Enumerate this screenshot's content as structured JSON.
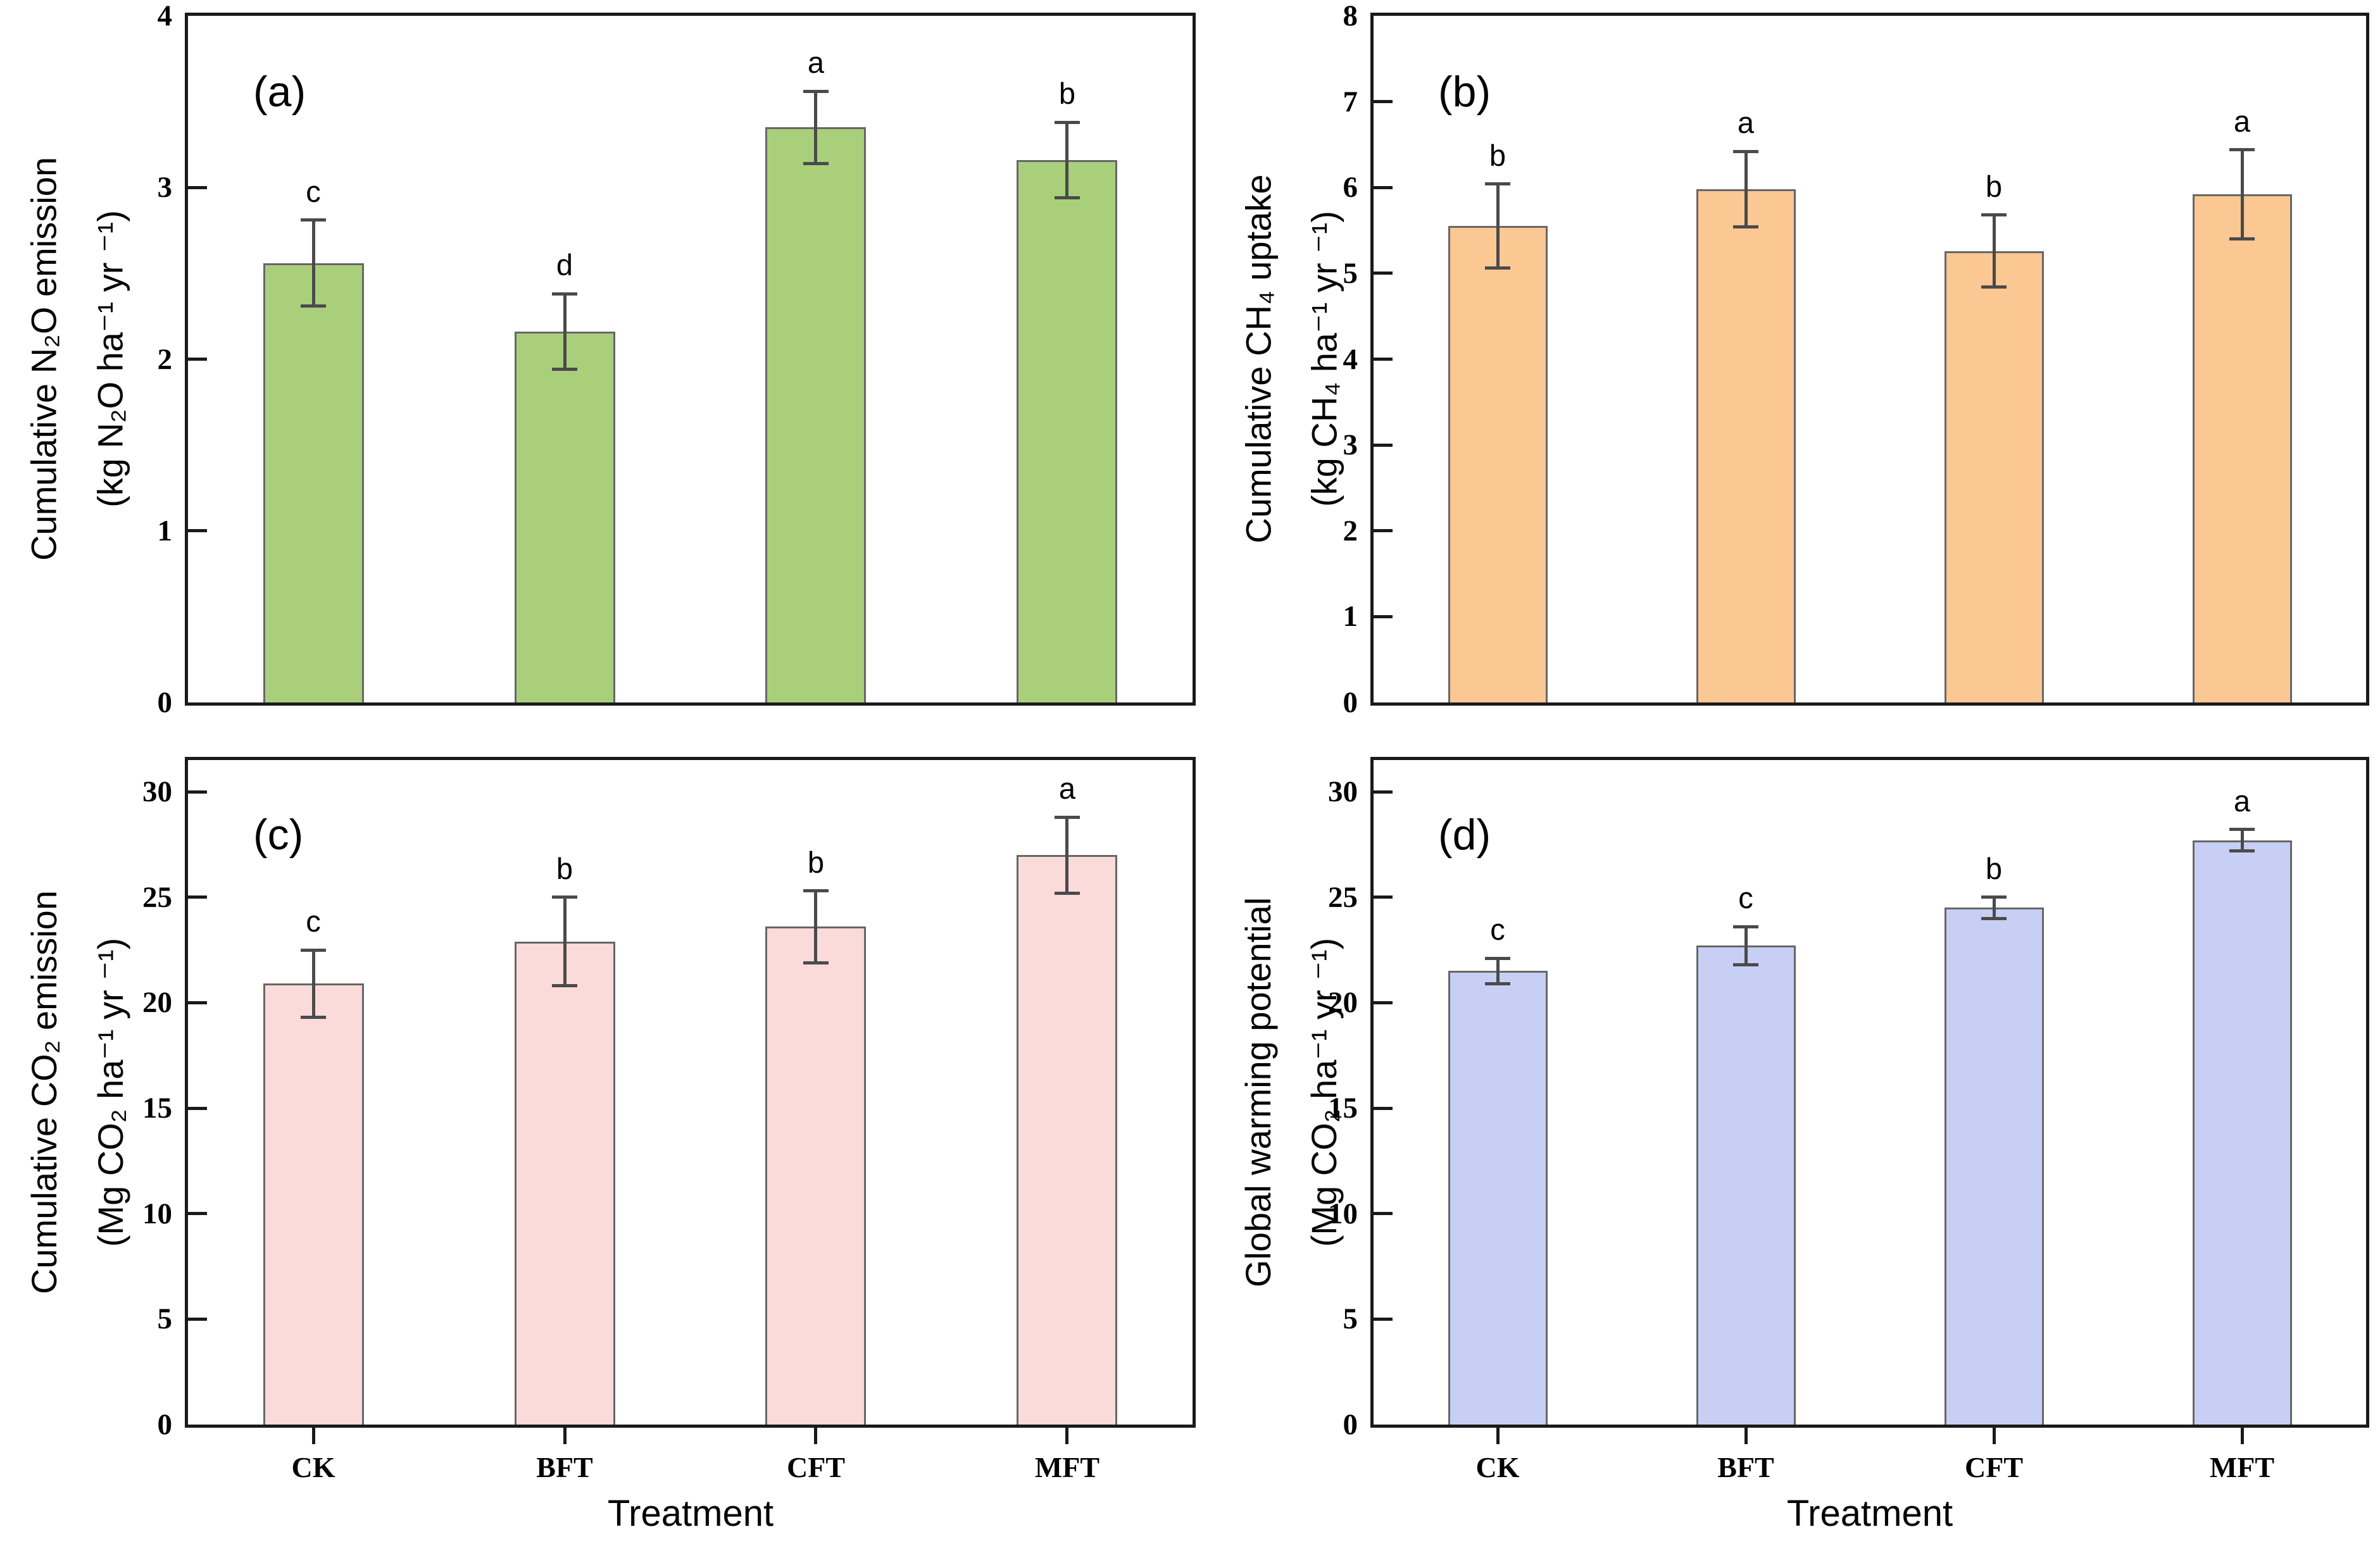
{
  "figure": {
    "xaxis_title": "Treatment",
    "background": "#ffffff",
    "frame_color": "#1a1a1a"
  },
  "chart_data": {
    "type": "bar",
    "categories": [
      "CK",
      "BFT",
      "CFT",
      "MFT"
    ],
    "xlabel": "Treatment",
    "grid": "off",
    "legend": "none",
    "error_bar_color": "#4a4a4a",
    "bar_edge_color": "#666666",
    "panels": [
      {
        "id": "a",
        "tag": "(a)",
        "title": "Cumulative N₂O emission",
        "units": "(kg N₂O ha⁻¹ yr ⁻¹)",
        "ylim": [
          0,
          4
        ],
        "yticks": [
          0,
          1,
          2,
          3,
          4
        ],
        "values": [
          2.56,
          2.16,
          3.35,
          3.16
        ],
        "errors": [
          0.25,
          0.22,
          0.21,
          0.22
        ],
        "letters": [
          "c",
          "d",
          "a",
          "b"
        ],
        "bar_fill": "#a9cf7b"
      },
      {
        "id": "b",
        "tag": "(b)",
        "title": "Cumulative CH₄ uptake",
        "units": "(kg CH₄ ha⁻¹ yr ⁻¹)",
        "ylim": [
          0,
          8
        ],
        "yticks": [
          0,
          1,
          2,
          3,
          4,
          5,
          6,
          7,
          8
        ],
        "values": [
          5.55,
          5.98,
          5.26,
          5.92
        ],
        "errors": [
          0.49,
          0.44,
          0.42,
          0.52
        ],
        "letters": [
          "b",
          "a",
          "b",
          "a"
        ],
        "bar_fill": "#fbc793"
      },
      {
        "id": "c",
        "tag": "(c)",
        "title": "Cumulative CO₂ emission",
        "units": "(Mg CO₂ ha⁻¹ yr ⁻¹)",
        "ylim": [
          0,
          31.5
        ],
        "yticks": [
          0,
          5,
          10,
          15,
          20,
          25,
          30
        ],
        "values": [
          20.9,
          22.9,
          23.6,
          27.0
        ],
        "errors": [
          1.6,
          2.1,
          1.7,
          1.8
        ],
        "letters": [
          "c",
          "b",
          "b",
          "a"
        ],
        "bar_fill": "#fbdada"
      },
      {
        "id": "d",
        "tag": "(d)",
        "title": "Global warming potential",
        "units": "(Mg CO₂ ha⁻¹ yr ⁻¹)",
        "ylim": [
          0,
          31.5
        ],
        "yticks": [
          0,
          5,
          10,
          15,
          20,
          25,
          30
        ],
        "values": [
          21.5,
          22.7,
          24.5,
          27.7
        ],
        "errors": [
          0.6,
          0.9,
          0.5,
          0.5
        ],
        "letters": [
          "c",
          "c",
          "b",
          "a"
        ],
        "bar_fill": "#c8cff5"
      }
    ]
  }
}
